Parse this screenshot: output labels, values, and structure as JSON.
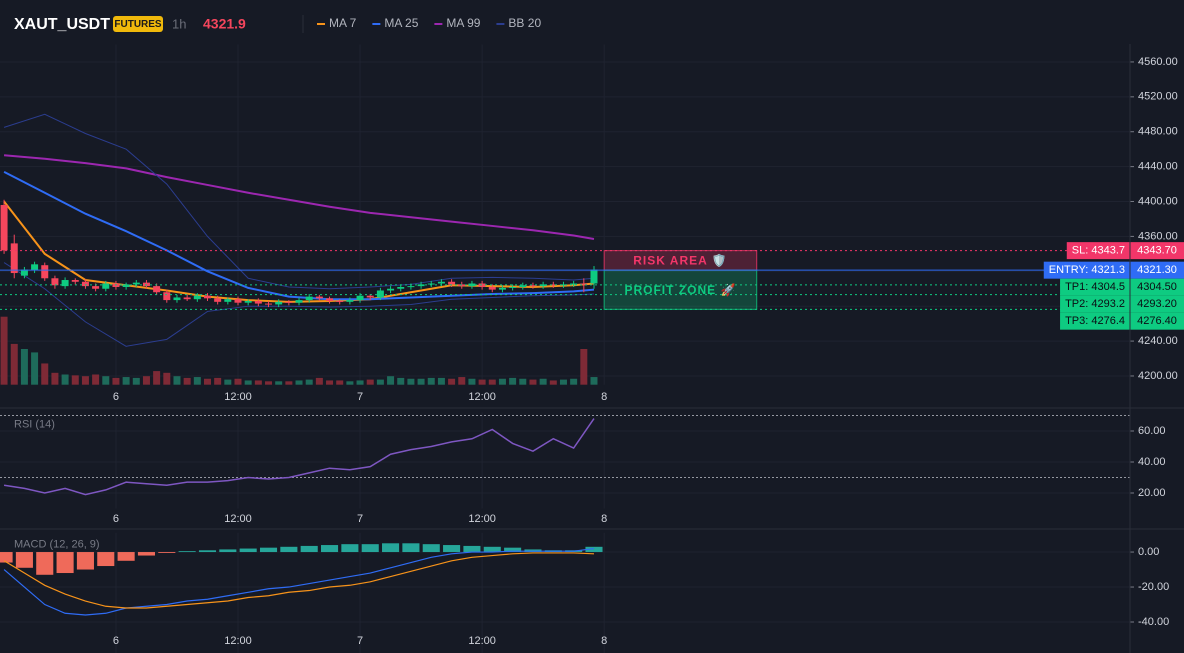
{
  "header": {
    "symbol": "XAUT_USDT",
    "badge": "FUTURES",
    "interval": "1h",
    "price": "4321.9"
  },
  "chart_data": [
    {
      "type": "candlestick",
      "x": [
        -11,
        -10,
        -9,
        -8,
        -7,
        -6,
        -5,
        -4,
        -3,
        -2,
        -1,
        0,
        1,
        2,
        3,
        4,
        5,
        6,
        7,
        8,
        9,
        10,
        11,
        12,
        13,
        14,
        15,
        16,
        17,
        18,
        19,
        20,
        21,
        22,
        23,
        24,
        25,
        26,
        27,
        28,
        29,
        30,
        31,
        32,
        33,
        34,
        35,
        36,
        37,
        38,
        39,
        40,
        41,
        42,
        43,
        44,
        45,
        46,
        47
      ],
      "open": [
        4396,
        4352,
        4315,
        4321,
        4327,
        4312,
        4303,
        4310,
        4308,
        4303,
        4300,
        4306,
        4302,
        4305,
        4307,
        4303,
        4296,
        4287,
        4290,
        4288,
        4292,
        4289,
        4285,
        4288,
        4284,
        4286,
        4283,
        4282,
        4285,
        4284,
        4287,
        4291,
        4289,
        4286,
        4285,
        4287,
        4292,
        4290,
        4298,
        4300,
        4302,
        4303,
        4305,
        4306,
        4308,
        4305,
        4303,
        4306,
        4302,
        4299,
        4301,
        4302,
        4304,
        4303,
        4305,
        4304,
        4305,
        4306,
        4306
      ],
      "high": [
        4402,
        4362,
        4325,
        4331,
        4330,
        4315,
        4313,
        4312,
        4311,
        4306,
        4309,
        4309,
        4307,
        4310,
        4310,
        4306,
        4299,
        4293,
        4293,
        4295,
        4295,
        4292,
        4290,
        4291,
        4288,
        4289,
        4286,
        4288,
        4287,
        4290,
        4294,
        4293,
        4291,
        4288,
        4290,
        4295,
        4294,
        4301,
        4303,
        4305,
        4306,
        4308,
        4309,
        4311,
        4311,
        4308,
        4309,
        4309,
        4305,
        4304,
        4305,
        4307,
        4307,
        4308,
        4308,
        4308,
        4309,
        4312,
        4326
      ],
      "low": [
        4340,
        4312,
        4312,
        4318,
        4309,
        4300,
        4300,
        4305,
        4300,
        4297,
        4297,
        4299,
        4299,
        4302,
        4300,
        4293,
        4284,
        4284,
        4286,
        4285,
        4286,
        4282,
        4282,
        4281,
        4281,
        4280,
        4279,
        4279,
        4281,
        4281,
        4284,
        4286,
        4283,
        4282,
        4282,
        4284,
        4287,
        4287,
        4295,
        4297,
        4299,
        4300,
        4302,
        4303,
        4302,
        4300,
        4300,
        4299,
        4296,
        4296,
        4298,
        4299,
        4300,
        4300,
        4301,
        4301,
        4302,
        4296,
        4300
      ],
      "close": [
        4344,
        4318,
        4322,
        4328,
        4312,
        4304,
        4310,
        4308,
        4303,
        4300,
        4306,
        4302,
        4305,
        4307,
        4303,
        4296,
        4287,
        4290,
        4288,
        4292,
        4289,
        4285,
        4288,
        4284,
        4286,
        4283,
        4282,
        4285,
        4284,
        4287,
        4291,
        4289,
        4286,
        4285,
        4287,
        4292,
        4290,
        4298,
        4300,
        4302,
        4303,
        4305,
        4306,
        4308,
        4305,
        4303,
        4306,
        4302,
        4299,
        4301,
        4302,
        4304,
        4303,
        4305,
        4304,
        4305,
        4306,
        4305,
        4322
      ],
      "volume": [
        80,
        48,
        42,
        38,
        25,
        14,
        12,
        11,
        10,
        12,
        10,
        8,
        9,
        8,
        10,
        16,
        14,
        10,
        8,
        9,
        7,
        8,
        6,
        7,
        5,
        5,
        4,
        4,
        4,
        5,
        6,
        8,
        5,
        5,
        4,
        5,
        6,
        6,
        10,
        8,
        7,
        7,
        8,
        8,
        7,
        9,
        7,
        6,
        6,
        7,
        8,
        7,
        6,
        7,
        5,
        6,
        7,
        42,
        9
      ],
      "vlim": [
        0,
        100
      ],
      "up_color": "#0ecb81",
      "down_color": "#f6465d",
      "volume_colors": [
        "#1e6b5b",
        "#7e2a36"
      ],
      "series": [
        {
          "name": "MA 7",
          "color": "#f7931a",
          "x": [
            -11,
            -7,
            -3,
            1,
            5,
            9,
            13,
            17,
            21,
            25,
            29,
            33,
            37,
            41,
            45,
            47
          ],
          "values": [
            4400,
            4340,
            4310,
            4304,
            4298,
            4291,
            4287,
            4285,
            4286,
            4288,
            4296,
            4304,
            4303,
            4302,
            4304,
            4306
          ]
        },
        {
          "name": "MA 25",
          "color": "#2f6cf5",
          "x": [
            -11,
            -7,
            -3,
            1,
            5,
            9,
            13,
            17,
            21,
            25,
            29,
            33,
            37,
            41,
            45,
            47
          ],
          "values": [
            4434,
            4410,
            4386,
            4366,
            4344,
            4320,
            4301,
            4291,
            4288,
            4288,
            4290,
            4292,
            4294,
            4295,
            4297,
            4299
          ]
        },
        {
          "name": "MA 99",
          "color": "#9c27b0",
          "x": [
            -11,
            -7,
            -3,
            1,
            5,
            9,
            13,
            17,
            21,
            25,
            29,
            33,
            37,
            41,
            45,
            47
          ],
          "values": [
            4453,
            4449,
            4444,
            4438,
            4428,
            4419,
            4410,
            4402,
            4394,
            4387,
            4382,
            4377,
            4372,
            4367,
            4361,
            4357
          ]
        },
        {
          "name": "BB 20",
          "color": "#2b3d8f",
          "x": [
            -11,
            -7,
            -3,
            1,
            5,
            9,
            13,
            17,
            21,
            25,
            29,
            33,
            37,
            41,
            45,
            47
          ],
          "values": [
            4485,
            4500,
            4478,
            4460,
            4420,
            4360,
            4312,
            4302,
            4300,
            4302,
            4305,
            4312,
            4313,
            4312,
            4310,
            4312
          ],
          "lower": [
            4330,
            4300,
            4262,
            4234,
            4242,
            4274,
            4280,
            4280,
            4279,
            4280,
            4282,
            4288,
            4290,
            4292,
            4293,
            4294
          ]
        }
      ],
      "levels": [
        {
          "label": "SL: 4343.7",
          "value": 4343.7,
          "axis_label": "4343.70",
          "color": "#f23669",
          "text_color": "#ffffff",
          "style": "dotted"
        },
        {
          "label": "ENTRY: 4321.3",
          "value": 4321.3,
          "axis_label": "4321.30",
          "color": "#2f6cf5",
          "text_color": "#ffffff",
          "style": "solid"
        },
        {
          "label": "TP1: 4304.5",
          "value": 4304.5,
          "axis_label": "4304.50",
          "color": "#0ecb81",
          "text_color": "#0b0e14",
          "style": "dotted"
        },
        {
          "label": "TP2: 4293.2",
          "value": 4293.2,
          "axis_label": "4293.20",
          "color": "#0ecb81",
          "text_color": "#0b0e14",
          "style": "dotted"
        },
        {
          "label": "TP3: 4276.4",
          "value": 4276.4,
          "axis_label": "4276.40",
          "color": "#0ecb81",
          "text_color": "#0b0e14",
          "style": "dotted"
        }
      ],
      "zones": [
        {
          "label": "RISK AREA 🛡️",
          "range": [
            4321.3,
            4343.7
          ],
          "xrange": [
            48,
            63
          ],
          "color": "#f23669"
        },
        {
          "label": "PROFIT ZONE 🚀",
          "range": [
            4276.4,
            4321.3
          ],
          "xrange": [
            48,
            63
          ],
          "color": "#0ecb81"
        }
      ],
      "xlim": [
        -11.4,
        99.7
      ],
      "xticks": [
        {
          "value": 0,
          "label": "6"
        },
        {
          "value": 12,
          "label": "12:00"
        },
        {
          "value": 24,
          "label": "7"
        },
        {
          "value": 36,
          "label": "12:00"
        },
        {
          "value": 48,
          "label": "8"
        }
      ],
      "ylim": [
        4190,
        4580
      ],
      "yticks": [
        {
          "value": 4200,
          "label": "4200.00"
        },
        {
          "value": 4240,
          "label": "4240.00"
        },
        {
          "value": 4280,
          "label": "4280.00"
        },
        {
          "value": 4320,
          "label": "4320.00"
        },
        {
          "value": 4360,
          "label": "4360.00"
        },
        {
          "value": 4400,
          "label": "4400.00"
        },
        {
          "value": 4440,
          "label": "4440.00"
        },
        {
          "value": 4480,
          "label": "4480.00"
        },
        {
          "value": 4520,
          "label": "4520.00"
        },
        {
          "value": 4560,
          "label": "4560.00"
        }
      ],
      "grid": true
    },
    {
      "type": "line",
      "label": "RSI (14)",
      "x": [
        -11,
        -9,
        -7,
        -5,
        -3,
        -1,
        1,
        3,
        5,
        7,
        9,
        11,
        13,
        15,
        17,
        19,
        21,
        23,
        25,
        27,
        29,
        31,
        33,
        35,
        37,
        39,
        41,
        43,
        45,
        47
      ],
      "series": [
        {
          "color": "#7e57c2",
          "values": [
            25,
            23,
            20,
            23,
            19,
            22,
            27,
            26,
            25,
            27,
            27,
            28,
            30,
            29,
            30,
            33,
            36,
            35,
            37,
            45,
            48,
            50,
            53,
            55,
            61,
            52,
            47,
            55,
            49,
            68
          ]
        }
      ],
      "bands": [
        70,
        30
      ],
      "xlim": [
        -11.4,
        99.7
      ],
      "xticks": [
        {
          "value": 0,
          "label": "6"
        },
        {
          "value": 12,
          "label": "12:00"
        },
        {
          "value": 24,
          "label": "7"
        },
        {
          "value": 36,
          "label": "12:00"
        },
        {
          "value": 48,
          "label": "8"
        }
      ],
      "ylim": [
        10,
        72
      ],
      "yticks": [
        {
          "value": 20,
          "label": "20.00"
        },
        {
          "value": 40,
          "label": "40.00"
        },
        {
          "value": 60,
          "label": "60.00"
        }
      ],
      "grid": true
    },
    {
      "type": "macd",
      "label": "MACD (12, 26, 9)",
      "x": [
        -11,
        -9,
        -7,
        -5,
        -3,
        -1,
        1,
        3,
        5,
        7,
        9,
        11,
        13,
        15,
        17,
        19,
        21,
        23,
        25,
        27,
        29,
        31,
        33,
        35,
        37,
        39,
        41,
        43,
        45,
        47
      ],
      "histogram": {
        "values": [
          -6,
          -9,
          -13,
          -12,
          -10,
          -8,
          -5,
          -2,
          -0.5,
          0.5,
          1,
          1.5,
          2,
          2.5,
          3,
          3.5,
          4,
          4.5,
          4.5,
          5,
          5,
          4.5,
          4,
          3.5,
          3,
          2.5,
          1.5,
          1,
          1,
          3
        ],
        "colors": [
          "#26a69a",
          "#ef6a5a"
        ]
      },
      "series": [
        {
          "color": "#2f6cf5",
          "values": [
            -10,
            -20,
            -30,
            -35,
            -36,
            -35,
            -32,
            -31,
            -30,
            -28,
            -27,
            -25,
            -23,
            -21,
            -20,
            -18,
            -16,
            -14,
            -12,
            -9,
            -6,
            -3,
            -1,
            0,
            0,
            0.5,
            0.5,
            0.5,
            0.5,
            2
          ]
        },
        {
          "color": "#f7931a",
          "values": [
            -5,
            -12,
            -19,
            -24,
            -28,
            -31,
            -32,
            -32,
            -31,
            -30,
            -29,
            -28,
            -26,
            -25,
            -23,
            -22,
            -20,
            -19,
            -17,
            -14,
            -11,
            -8,
            -5,
            -3,
            -2,
            -1,
            -0.5,
            -0.5,
            -0.5,
            -1
          ]
        }
      ],
      "xlim": [
        -11.4,
        99.7
      ],
      "xticks": [
        {
          "value": 0,
          "label": "6"
        },
        {
          "value": 12,
          "label": "12:00"
        },
        {
          "value": 24,
          "label": "7"
        },
        {
          "value": 36,
          "label": "12:00"
        },
        {
          "value": 48,
          "label": "8"
        }
      ],
      "ylim": [
        -58,
        11
      ],
      "yticks": [
        {
          "value": -40,
          "label": "-40.00"
        },
        {
          "value": -20,
          "label": "-20.00"
        },
        {
          "value": 0,
          "label": "0.00"
        }
      ],
      "grid": true
    }
  ]
}
